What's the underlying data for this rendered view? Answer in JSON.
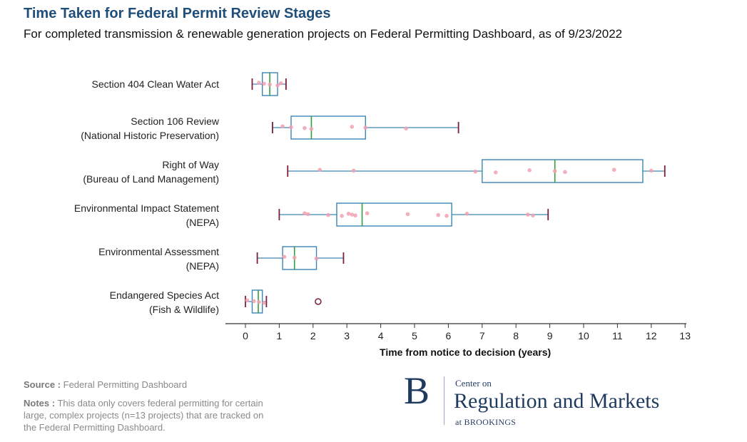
{
  "title": "Time Taken for Federal Permit Review Stages",
  "subtitle": "For completed transmission & renewable generation projects on Federal Permitting Dashboard, as of 9/23/2022",
  "footer": {
    "source_label": "Source :",
    "source_text": "Federal Permitting Dashboard",
    "notes_label": "Notes :",
    "notes_line1": "This data only covers federal permitting for certain",
    "notes_line2": "large, complex projects (n=13 projects) that are tracked on",
    "notes_line3": "the Federal Permitting Dashboard."
  },
  "logo": {
    "letter": "B",
    "line1": "Center on",
    "line2": "Regulation and Markets",
    "line3": "at BROOKINGS"
  },
  "colors": {
    "box": "#3a86b4",
    "median": "#2e9e3e",
    "whisker": "#7a1f3d",
    "point": "#f2a0b0",
    "title": "#1f4e79"
  },
  "chart_data": {
    "type": "boxplot",
    "orientation": "horizontal",
    "xlabel": "Time from notice to decision (years)",
    "xlim": [
      -0.6,
      13
    ],
    "xticks": [
      0,
      1,
      2,
      3,
      4,
      5,
      6,
      7,
      8,
      9,
      10,
      11,
      12,
      13
    ],
    "series": [
      {
        "line1": "Section 404 Clean Water Act",
        "line2": "",
        "whisker_low": 0.2,
        "q1": 0.5,
        "median": 0.72,
        "q3": 0.95,
        "whisker_high": 1.2,
        "points": [
          0.4,
          0.55,
          0.72,
          0.95,
          1.05
        ],
        "outliers": []
      },
      {
        "line1": "Section 106 Review",
        "line2": "(National Historic Preservation)",
        "whisker_low": 0.8,
        "q1": 1.35,
        "median": 1.95,
        "q3": 3.55,
        "whisker_high": 6.3,
        "points": [
          1.1,
          1.35,
          1.75,
          1.95,
          3.15,
          3.55,
          4.75
        ],
        "outliers": []
      },
      {
        "line1": "Right of Way",
        "line2": "(Bureau of Land Management)",
        "whisker_low": 1.25,
        "q1": 7.0,
        "median": 9.15,
        "q3": 11.75,
        "whisker_high": 12.4,
        "points": [
          2.2,
          3.2,
          6.8,
          7.4,
          8.4,
          9.15,
          9.45,
          10.9,
          12.0
        ],
        "outliers": []
      },
      {
        "line1": "Environmental Impact Statement",
        "line2": "(NEPA)",
        "whisker_low": 1.0,
        "q1": 2.7,
        "median": 3.45,
        "q3": 6.1,
        "whisker_high": 8.95,
        "points": [
          1.75,
          1.85,
          2.45,
          2.85,
          3.05,
          3.15,
          3.25,
          3.6,
          4.8,
          5.7,
          5.95,
          6.55,
          8.35,
          8.5
        ],
        "outliers": []
      },
      {
        "line1": "Environmental Assessment",
        "line2": "(NEPA)",
        "whisker_low": 0.35,
        "q1": 1.1,
        "median": 1.45,
        "q3": 2.1,
        "whisker_high": 2.9,
        "points": [
          1.15,
          1.45,
          2.1
        ],
        "outliers": []
      },
      {
        "line1": "Endangered Species Act",
        "line2": "(Fish & Wildlife)",
        "whisker_low": 0.0,
        "q1": 0.2,
        "median": 0.38,
        "q3": 0.5,
        "whisker_high": 0.62,
        "points": [
          0.05,
          0.25,
          0.4,
          0.55
        ],
        "outliers": [
          2.15
        ]
      }
    ]
  }
}
